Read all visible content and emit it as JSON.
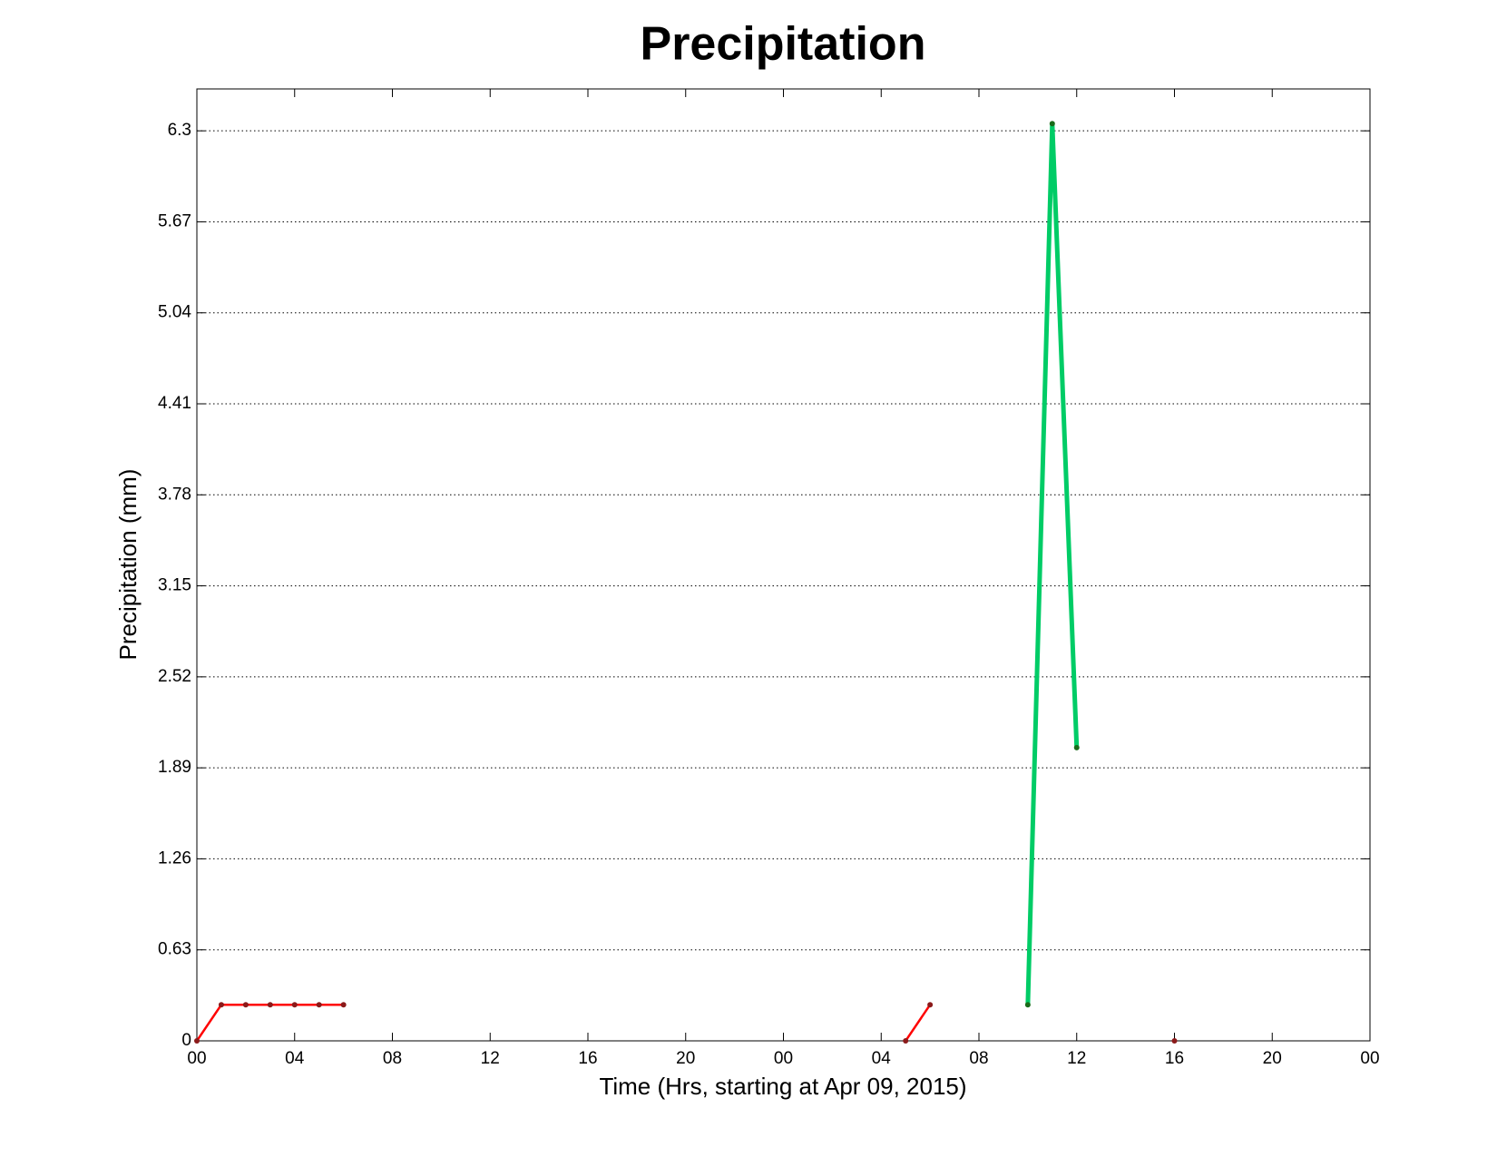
{
  "chart_data": {
    "type": "line",
    "title": "Precipitation",
    "x_label": "Time (Hrs, starting at Apr 09, 2015)",
    "y_label": "Precipitation (mm)",
    "x": [
      0,
      1,
      2,
      3,
      4,
      5,
      6,
      7,
      8,
      9,
      10,
      11,
      12,
      13,
      14,
      15,
      16,
      17,
      18,
      19,
      20,
      21,
      22,
      23,
      24,
      25,
      26,
      27,
      28,
      29,
      30,
      31,
      32,
      33,
      34,
      35,
      36,
      37,
      38,
      39,
      40
    ],
    "series": [
      {
        "color": "#ff0000",
        "marker_color": "#8b1a1a",
        "line_width": 2.5,
        "values": [
          0,
          0.25,
          0.25,
          0.25,
          0.25,
          0.25,
          0.25,
          null,
          null,
          null,
          null,
          null,
          null,
          null,
          null,
          null,
          null,
          null,
          null,
          null,
          null,
          null,
          null,
          null,
          null,
          null,
          null,
          null,
          null,
          0,
          0.25,
          null,
          null,
          null,
          null,
          null,
          null,
          null,
          null,
          null,
          0
        ]
      },
      {
        "color": "#00cc66",
        "marker_color": "#1a6b1a",
        "line_width": 5,
        "values": [
          null,
          null,
          null,
          null,
          null,
          null,
          null,
          null,
          null,
          null,
          null,
          null,
          null,
          null,
          null,
          null,
          null,
          null,
          null,
          null,
          null,
          null,
          null,
          null,
          null,
          null,
          null,
          null,
          null,
          null,
          null,
          null,
          null,
          null,
          0.25,
          6.35,
          2.03,
          null,
          null,
          null,
          null
        ]
      }
    ],
    "xlim": [
      0,
      48
    ],
    "xticks": [
      {
        "value": 0,
        "label": "00"
      },
      {
        "value": 4,
        "label": "04"
      },
      {
        "value": 8,
        "label": "08"
      },
      {
        "value": 12,
        "label": "12"
      },
      {
        "value": 16,
        "label": "16"
      },
      {
        "value": 20,
        "label": "20"
      },
      {
        "value": 24,
        "label": "00"
      },
      {
        "value": 28,
        "label": "04"
      },
      {
        "value": 32,
        "label": "08"
      },
      {
        "value": 36,
        "label": "12"
      },
      {
        "value": 40,
        "label": "16"
      },
      {
        "value": 44,
        "label": "20"
      },
      {
        "value": 48,
        "label": "00"
      }
    ],
    "ylim": [
      0,
      6.59
    ],
    "yticks": [
      0,
      0.63,
      1.26,
      1.89,
      2.52,
      3.15,
      3.78,
      4.41,
      5.04,
      5.67,
      6.3
    ],
    "grid": true
  }
}
